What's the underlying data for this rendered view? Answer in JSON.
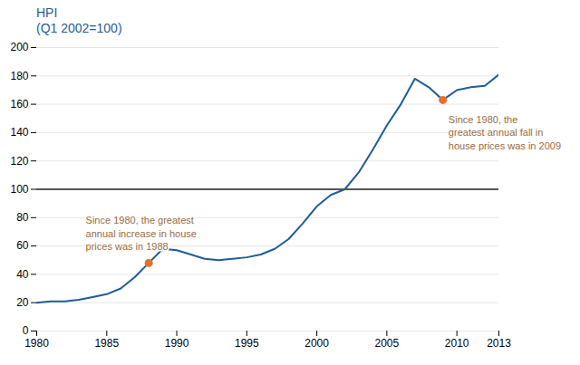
{
  "chart_data": {
    "type": "line",
    "title": "HPI",
    "subtitle": "(Q1 2002=100)",
    "x": [
      1980,
      1981,
      1982,
      1983,
      1984,
      1985,
      1986,
      1987,
      1988,
      1989,
      1990,
      1991,
      1992,
      1993,
      1994,
      1995,
      1996,
      1997,
      1998,
      1999,
      2000,
      2001,
      2002,
      2003,
      2004,
      2005,
      2006,
      2007,
      2008,
      2009,
      2010,
      2011,
      2012,
      2013
    ],
    "values": [
      20,
      21,
      21,
      22,
      24,
      26,
      30,
      38,
      48,
      58,
      57,
      54,
      51,
      50,
      51,
      52,
      54,
      58,
      65,
      76,
      88,
      96,
      100,
      112,
      128,
      145,
      160,
      178,
      172,
      163,
      170,
      172,
      173,
      181
    ],
    "color": "#1f5c99",
    "xlim": [
      1980,
      2013
    ],
    "ylim": [
      0,
      200
    ],
    "xticks": [
      1980,
      1985,
      1990,
      1995,
      2000,
      2005,
      2010,
      2013
    ],
    "yticks": [
      0,
      20,
      40,
      60,
      80,
      100,
      120,
      140,
      160,
      180,
      200
    ],
    "grid": true,
    "reference_line": {
      "y": 100,
      "color": "#555555"
    },
    "annotations": [
      {
        "text": "Since 1980, the greatest\nannual increase in house\nprices was in 1988",
        "x": 1983.5,
        "y": 82,
        "color": "#9b6b3a",
        "point": {
          "x": 1988,
          "y": 48,
          "color": "#e8702a"
        }
      },
      {
        "text": "Since 1980, the\ngreatest annual fall in\nhouse prices was in 2009",
        "x": 2009.4,
        "y": 153,
        "color": "#9b6b3a",
        "point": {
          "x": 2009,
          "y": 163,
          "color": "#e8702a"
        }
      }
    ]
  }
}
